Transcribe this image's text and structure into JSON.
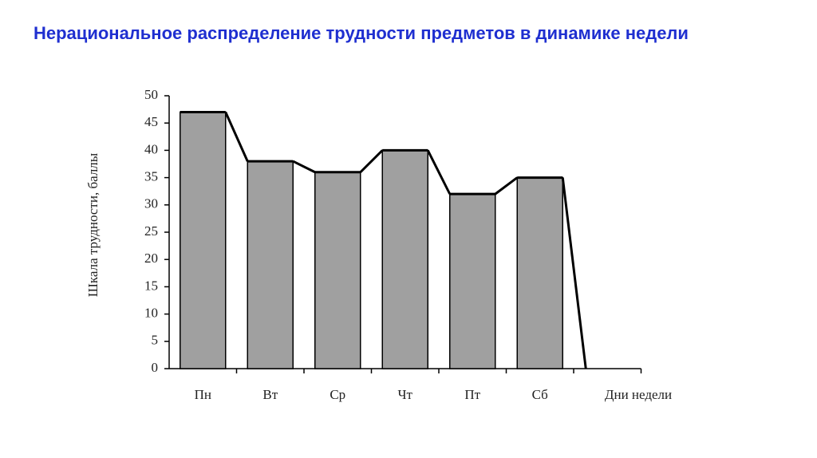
{
  "chart_data": {
    "type": "bar",
    "title": "Нерациональное распределение трудности предметов в динамике недели",
    "y_label": "Шкала трудности, баллы",
    "x_label": "Дни недели",
    "categories": [
      "Пн",
      "Вт",
      "Ср",
      "Чт",
      "Пт",
      "Сб"
    ],
    "values": [
      47,
      38,
      36,
      40,
      32,
      35
    ],
    "color": "#a0a0a0",
    "ylim": [
      0,
      50
    ],
    "yticks": [
      0,
      5,
      10,
      15,
      20,
      25,
      30,
      35,
      40,
      45,
      50
    ]
  }
}
